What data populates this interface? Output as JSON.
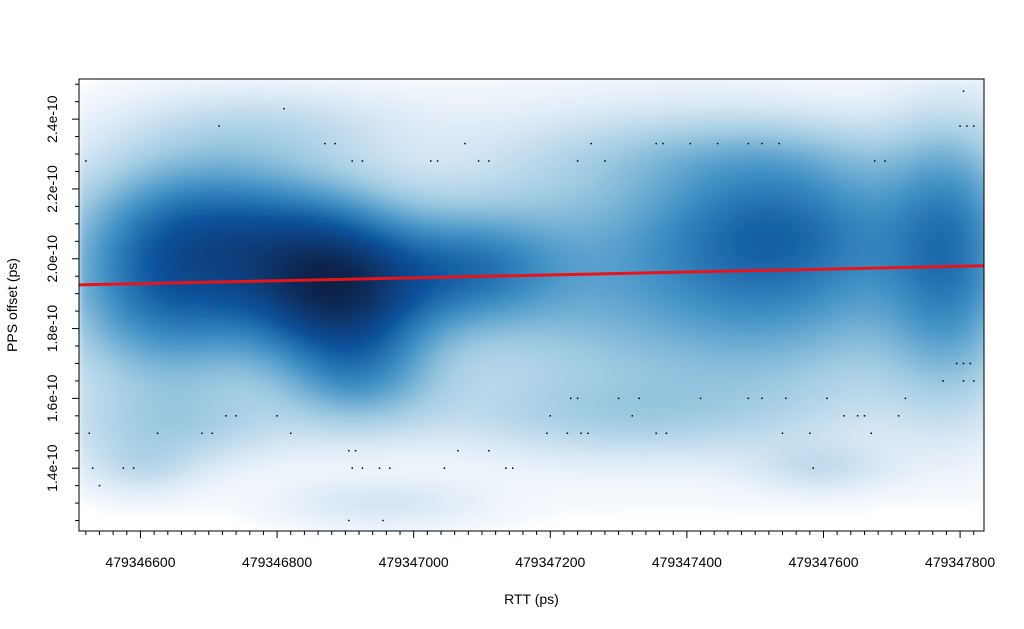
{
  "chart_data": {
    "type": "scatter",
    "subtype": "smoothed-density-scatter",
    "title": "",
    "xlabel": "RTT (ps)",
    "ylabel": "PPS offset (ps)",
    "xlim": [
      479346510,
      479347835
    ],
    "ylim": [
      1.22e-10,
      2.515e-10
    ],
    "x_ticks": [
      479346600,
      479346800,
      479347000,
      479347200,
      479347400,
      479347600,
      479347800
    ],
    "x_tick_labels": [
      "479346600",
      "479346800",
      "479347000",
      "479347200",
      "479347400",
      "479347600",
      "479347800"
    ],
    "y_ticks": [
      1.4e-10,
      1.6e-10,
      1.8e-10,
      2e-10,
      2.2e-10,
      2.4e-10
    ],
    "y_tick_labels": [
      "1.4e-10",
      "1.6e-10",
      "1.8e-10",
      "2.0e-10",
      "2.2e-10",
      "2.4e-10"
    ],
    "density_color": "#08519c",
    "fit_line": {
      "color": "#e8141b",
      "points": [
        {
          "x": 479346510,
          "y": 1.925e-10
        },
        {
          "x": 479347835,
          "y": 1.98e-10
        }
      ]
    },
    "density_clusters": [
      {
        "x": 479346700,
        "y": 2.08e-10,
        "sx": 130,
        "sy": 1.6e-11,
        "w": 1.0
      },
      {
        "x": 479346880,
        "y": 1.98e-10,
        "sx": 90,
        "sy": 1.4e-11,
        "w": 1.0
      },
      {
        "x": 479346900,
        "y": 1.84e-10,
        "sx": 90,
        "sy": 1.3e-11,
        "w": 0.85
      },
      {
        "x": 479346640,
        "y": 1.86e-10,
        "sx": 110,
        "sy": 1.8e-11,
        "w": 0.8
      },
      {
        "x": 479347080,
        "y": 1.97e-10,
        "sx": 90,
        "sy": 1.1e-11,
        "w": 0.7
      },
      {
        "x": 479347280,
        "y": 1.95e-10,
        "sx": 190,
        "sy": 2.6e-11,
        "w": 0.55
      },
      {
        "x": 479347540,
        "y": 2.11e-10,
        "sx": 130,
        "sy": 1.5e-11,
        "w": 0.65
      },
      {
        "x": 479347560,
        "y": 1.9e-10,
        "sx": 150,
        "sy": 2.2e-11,
        "w": 0.55
      },
      {
        "x": 479347790,
        "y": 2.13e-10,
        "sx": 70,
        "sy": 2e-11,
        "w": 0.6
      },
      {
        "x": 479347790,
        "y": 1.85e-10,
        "sx": 70,
        "sy": 2.2e-11,
        "w": 0.5
      },
      {
        "x": 479346920,
        "y": 1.65e-10,
        "sx": 80,
        "sy": 1e-11,
        "w": 0.5
      },
      {
        "x": 479346650,
        "y": 1.52e-10,
        "sx": 120,
        "sy": 8e-12,
        "w": 0.3
      },
      {
        "x": 479346600,
        "y": 1.4e-10,
        "sx": 60,
        "sy": 6e-12,
        "w": 0.2
      },
      {
        "x": 479346950,
        "y": 1.3e-10,
        "sx": 110,
        "sy": 5e-12,
        "w": 0.18
      },
      {
        "x": 479347600,
        "y": 1.4e-10,
        "sx": 70,
        "sy": 5e-12,
        "w": 0.2
      },
      {
        "x": 479347300,
        "y": 1.55e-10,
        "sx": 200,
        "sy": 8e-12,
        "w": 0.25
      },
      {
        "x": 479346800,
        "y": 2.38e-10,
        "sx": 150,
        "sy": 8e-12,
        "w": 0.2
      },
      {
        "x": 479347450,
        "y": 2.3e-10,
        "sx": 180,
        "sy": 8e-12,
        "w": 0.22
      }
    ],
    "outlier_points": [
      {
        "x": 479346520,
        "y": 2.28e-10
      },
      {
        "x": 479346525,
        "y": 1.5e-10
      },
      {
        "x": 479346530,
        "y": 1.4e-10
      },
      {
        "x": 479346540,
        "y": 1.35e-10
      },
      {
        "x": 479346575,
        "y": 1.4e-10
      },
      {
        "x": 479346590,
        "y": 1.4e-10
      },
      {
        "x": 479346625,
        "y": 1.5e-10
      },
      {
        "x": 479346690,
        "y": 1.5e-10
      },
      {
        "x": 479346705,
        "y": 1.5e-10
      },
      {
        "x": 479346725,
        "y": 1.55e-10
      },
      {
        "x": 479346740,
        "y": 1.55e-10
      },
      {
        "x": 479346715,
        "y": 2.38e-10
      },
      {
        "x": 479346810,
        "y": 2.43e-10
      },
      {
        "x": 479346800,
        "y": 1.55e-10
      },
      {
        "x": 479346820,
        "y": 1.5e-10
      },
      {
        "x": 479346870,
        "y": 2.33e-10
      },
      {
        "x": 479346885,
        "y": 2.33e-10
      },
      {
        "x": 479346910,
        "y": 2.28e-10
      },
      {
        "x": 479346925,
        "y": 2.28e-10
      },
      {
        "x": 479346905,
        "y": 1.45e-10
      },
      {
        "x": 479346915,
        "y": 1.45e-10
      },
      {
        "x": 479346910,
        "y": 1.4e-10
      },
      {
        "x": 479346925,
        "y": 1.4e-10
      },
      {
        "x": 479346950,
        "y": 1.4e-10
      },
      {
        "x": 479346965,
        "y": 1.4e-10
      },
      {
        "x": 479346905,
        "y": 1.25e-10
      },
      {
        "x": 479346955,
        "y": 1.25e-10
      },
      {
        "x": 479347025,
        "y": 2.28e-10
      },
      {
        "x": 479347035,
        "y": 2.28e-10
      },
      {
        "x": 479347045,
        "y": 1.4e-10
      },
      {
        "x": 479347065,
        "y": 1.45e-10
      },
      {
        "x": 479347075,
        "y": 2.33e-10
      },
      {
        "x": 479347095,
        "y": 2.28e-10
      },
      {
        "x": 479347110,
        "y": 2.28e-10
      },
      {
        "x": 479347110,
        "y": 1.45e-10
      },
      {
        "x": 479347135,
        "y": 1.4e-10
      },
      {
        "x": 479347145,
        "y": 1.4e-10
      },
      {
        "x": 479347195,
        "y": 1.5e-10
      },
      {
        "x": 479347200,
        "y": 1.55e-10
      },
      {
        "x": 479347225,
        "y": 1.5e-10
      },
      {
        "x": 479347230,
        "y": 1.6e-10
      },
      {
        "x": 479347240,
        "y": 1.6e-10
      },
      {
        "x": 479347245,
        "y": 1.5e-10
      },
      {
        "x": 479347255,
        "y": 1.5e-10
      },
      {
        "x": 479347240,
        "y": 2.28e-10
      },
      {
        "x": 479347260,
        "y": 2.33e-10
      },
      {
        "x": 479347280,
        "y": 2.28e-10
      },
      {
        "x": 479347300,
        "y": 1.6e-10
      },
      {
        "x": 479347320,
        "y": 1.55e-10
      },
      {
        "x": 479347330,
        "y": 1.6e-10
      },
      {
        "x": 479347355,
        "y": 2.33e-10
      },
      {
        "x": 479347365,
        "y": 2.33e-10
      },
      {
        "x": 479347355,
        "y": 1.5e-10
      },
      {
        "x": 479347370,
        "y": 1.5e-10
      },
      {
        "x": 479347405,
        "y": 2.33e-10
      },
      {
        "x": 479347420,
        "y": 1.6e-10
      },
      {
        "x": 479347445,
        "y": 2.33e-10
      },
      {
        "x": 479347490,
        "y": 2.33e-10
      },
      {
        "x": 479347490,
        "y": 1.6e-10
      },
      {
        "x": 479347510,
        "y": 2.33e-10
      },
      {
        "x": 479347510,
        "y": 1.6e-10
      },
      {
        "x": 479347535,
        "y": 2.33e-10
      },
      {
        "x": 479347540,
        "y": 1.5e-10
      },
      {
        "x": 479347545,
        "y": 1.6e-10
      },
      {
        "x": 479347580,
        "y": 1.5e-10
      },
      {
        "x": 479347585,
        "y": 1.4e-10
      },
      {
        "x": 479347605,
        "y": 1.6e-10
      },
      {
        "x": 479347630,
        "y": 1.55e-10
      },
      {
        "x": 479347650,
        "y": 1.55e-10
      },
      {
        "x": 479347660,
        "y": 1.55e-10
      },
      {
        "x": 479347670,
        "y": 1.5e-10
      },
      {
        "x": 479347675,
        "y": 2.28e-10
      },
      {
        "x": 479347690,
        "y": 2.28e-10
      },
      {
        "x": 479347710,
        "y": 1.55e-10
      },
      {
        "x": 479347720,
        "y": 1.6e-10
      },
      {
        "x": 479347775,
        "y": 1.65e-10
      },
      {
        "x": 479347795,
        "y": 1.7e-10
      },
      {
        "x": 479347805,
        "y": 1.7e-10
      },
      {
        "x": 479347815,
        "y": 1.7e-10
      },
      {
        "x": 479347805,
        "y": 1.65e-10
      },
      {
        "x": 479347820,
        "y": 1.65e-10
      },
      {
        "x": 479347800,
        "y": 2.38e-10
      },
      {
        "x": 479347810,
        "y": 2.38e-10
      },
      {
        "x": 479347820,
        "y": 2.38e-10
      },
      {
        "x": 479347805,
        "y": 2.48e-10
      }
    ]
  }
}
